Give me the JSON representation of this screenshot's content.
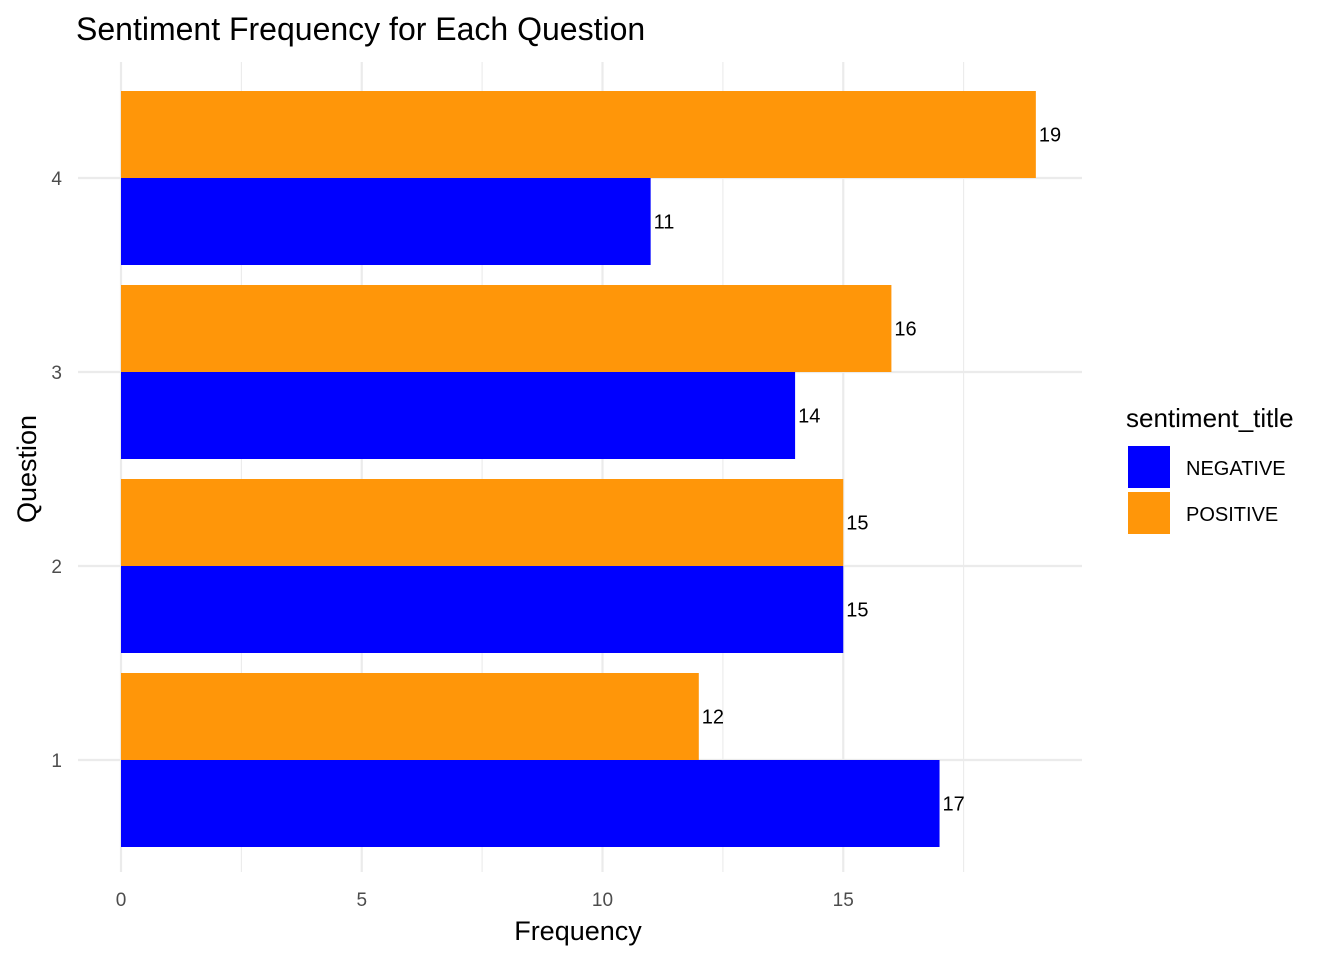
{
  "chart_data": {
    "type": "bar",
    "orientation": "horizontal",
    "title": "Sentiment Frequency for Each Question",
    "xlabel": "Frequency",
    "ylabel": "Question",
    "categories": [
      "1",
      "2",
      "3",
      "4"
    ],
    "series": [
      {
        "name": "NEGATIVE",
        "color": "#0000FF",
        "values": [
          17,
          15,
          14,
          11
        ]
      },
      {
        "name": "POSITIVE",
        "color": "#FF9609",
        "values": [
          12,
          15,
          16,
          19
        ]
      }
    ],
    "x_ticks": [
      "0",
      "5",
      "10",
      "15"
    ],
    "xlim": [
      0,
      19.9
    ],
    "grid": true,
    "legend": {
      "title": "sentiment_title",
      "position": "right"
    }
  }
}
